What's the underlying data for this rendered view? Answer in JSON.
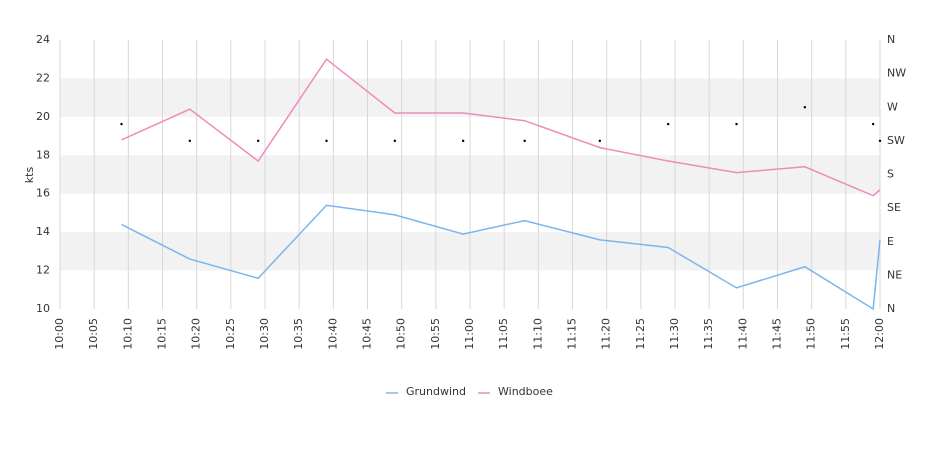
{
  "chart_data": {
    "type": "line",
    "y_axis_label": "kts",
    "x": [
      "10:09",
      "10:19",
      "10:29",
      "10:39",
      "10:49",
      "10:59",
      "11:08",
      "11:19",
      "11:29",
      "11:39",
      "11:49",
      "11:59",
      "12:00"
    ],
    "series": [
      {
        "name": "Grundwind",
        "color": "#7cb5ec",
        "values": [
          14.4,
          12.6,
          11.6,
          15.4,
          14.9,
          13.9,
          14.6,
          13.6,
          13.2,
          11.1,
          12.2,
          10.0,
          13.6
        ]
      },
      {
        "name": "Windboee",
        "color": "#ee8bbd",
        "values": [
          18.8,
          20.4,
          17.7,
          23.0,
          20.2,
          20.2,
          19.8,
          18.4,
          17.7,
          17.1,
          17.4,
          15.9,
          16.2
        ]
      }
    ],
    "direction": {
      "axis": "y2",
      "color": "#000000",
      "values": [
        247.5,
        225,
        225,
        225,
        225,
        225,
        225,
        225,
        247.5,
        247.5,
        270,
        247.5,
        225
      ]
    },
    "xlim": [
      "10:00",
      "12:00"
    ],
    "xticks": [
      "10:00",
      "10:05",
      "10:10",
      "10:15",
      "10:20",
      "10:25",
      "10:30",
      "10:35",
      "10:40",
      "10:45",
      "10:50",
      "10:55",
      "11:00",
      "11:05",
      "11:10",
      "11:15",
      "11:20",
      "11:25",
      "11:30",
      "11:35",
      "11:40",
      "11:45",
      "11:50",
      "11:55",
      "12:00"
    ],
    "ylim": [
      10,
      24
    ],
    "yticks": [
      10,
      12,
      14,
      16,
      18,
      20,
      22,
      24
    ],
    "y2lim": [
      0,
      360
    ],
    "y2ticks": [
      {
        "value": 0,
        "label": "N"
      },
      {
        "value": 45,
        "label": "NE"
      },
      {
        "value": 90,
        "label": "E"
      },
      {
        "value": 135,
        "label": "SE"
      },
      {
        "value": 180,
        "label": "S"
      },
      {
        "value": 225,
        "label": "SW"
      },
      {
        "value": 270,
        "label": "W"
      },
      {
        "value": 315,
        "label": "NW"
      },
      {
        "value": 360,
        "label": "N"
      }
    ],
    "alternate_bands": true,
    "grid": true,
    "legend": "bottom"
  }
}
